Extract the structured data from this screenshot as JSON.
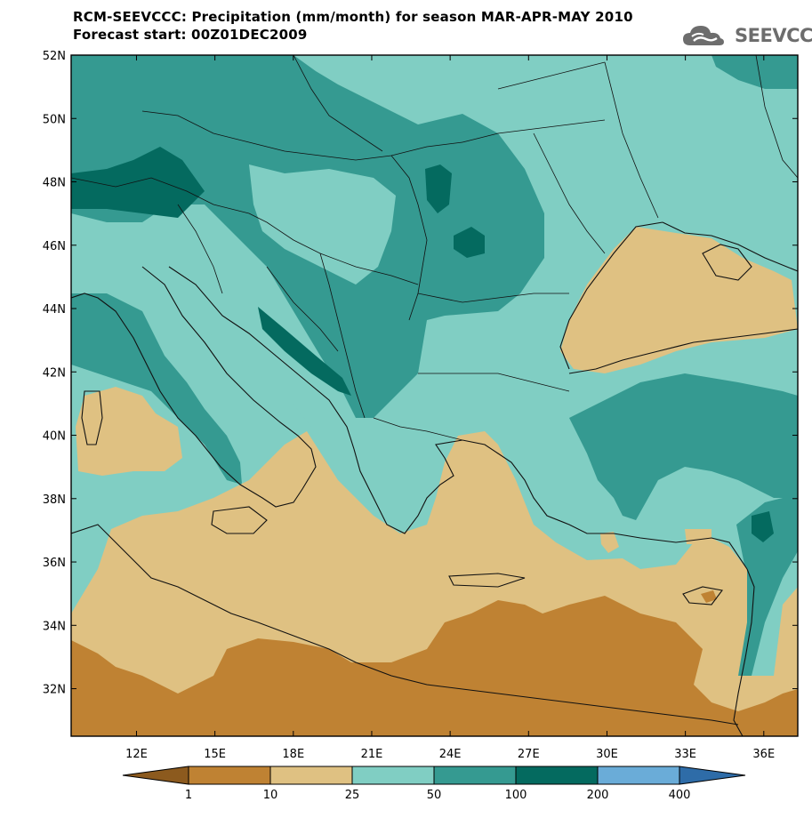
{
  "header": {
    "title_line1": "RCM-SEEVCCC: Precipitation (mm/month) for season MAR-APR-MAY 2010",
    "title_line2": "Forecast start: 00Z01DEC2009"
  },
  "logo": {
    "text": "SEEVCCC",
    "icon": "cloud-logo-icon",
    "color": "#6d6d6d"
  },
  "map": {
    "lat_labels": [
      "52N",
      "50N",
      "48N",
      "46N",
      "44N",
      "42N",
      "40N",
      "38N",
      "36N",
      "34N",
      "32N"
    ],
    "lon_labels": [
      "12E",
      "15E",
      "18E",
      "21E",
      "24E",
      "27E",
      "30E",
      "33E",
      "36E"
    ],
    "lat_range": [
      30.5,
      52
    ],
    "lon_range": [
      9.5,
      37.3
    ]
  },
  "legend": {
    "ticks": [
      "1",
      "10",
      "25",
      "50",
      "100",
      "200",
      "400"
    ],
    "colors": [
      "#8c5a1e",
      "#bf8233",
      "#dfc182",
      "#80cec3",
      "#359a91",
      "#046a5f",
      "#6aacd8",
      "#2e6ca8"
    ]
  }
}
